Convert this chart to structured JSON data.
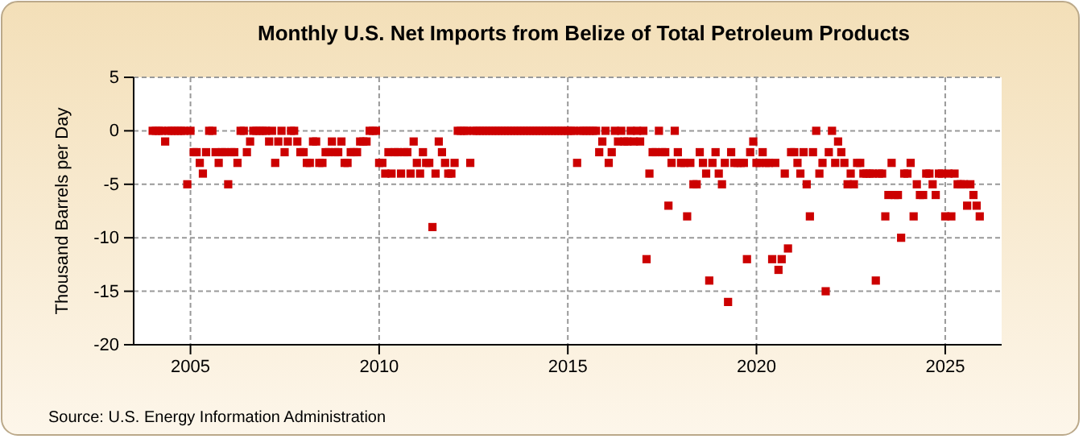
{
  "chart_data": {
    "type": "scatter",
    "title": "Monthly U.S. Net Imports from Belize of Total Petroleum Products",
    "ylabel": "Thousand Barrels per Day",
    "annotations": [
      "Source: U.S. Energy Information Administration"
    ],
    "xlim": [
      "2003-07",
      "2026-07"
    ],
    "xticks": [
      "2005",
      "2010",
      "2015",
      "2020",
      "2025"
    ],
    "ylim": [
      -20,
      5
    ],
    "yticks": [
      -20,
      -15,
      -10,
      -5,
      0,
      5
    ],
    "grid": true,
    "marker": "square",
    "x": [
      "2004-01",
      "2004-02",
      "2004-03",
      "2004-04",
      "2004-05",
      "2004-06",
      "2004-07",
      "2004-08",
      "2004-09",
      "2004-10",
      "2004-11",
      "2004-12",
      "2005-01",
      "2005-02",
      "2005-03",
      "2005-04",
      "2005-05",
      "2005-06",
      "2005-07",
      "2005-08",
      "2005-09",
      "2005-10",
      "2005-11",
      "2005-12",
      "2006-01",
      "2006-02",
      "2006-03",
      "2006-04",
      "2006-05",
      "2006-06",
      "2006-07",
      "2006-08",
      "2006-09",
      "2006-10",
      "2006-11",
      "2006-12",
      "2007-01",
      "2007-02",
      "2007-03",
      "2007-04",
      "2007-05",
      "2007-06",
      "2007-07",
      "2007-08",
      "2007-09",
      "2007-10",
      "2007-11",
      "2007-12",
      "2008-01",
      "2008-02",
      "2008-03",
      "2008-04",
      "2008-05",
      "2008-06",
      "2008-07",
      "2008-08",
      "2008-09",
      "2008-10",
      "2008-11",
      "2008-12",
      "2009-01",
      "2009-02",
      "2009-03",
      "2009-04",
      "2009-05",
      "2009-06",
      "2009-07",
      "2009-08",
      "2009-09",
      "2009-10",
      "2009-11",
      "2009-12",
      "2010-01",
      "2010-02",
      "2010-03",
      "2010-04",
      "2010-05",
      "2010-06",
      "2010-07",
      "2010-08",
      "2010-09",
      "2010-10",
      "2010-11",
      "2010-12",
      "2011-01",
      "2011-02",
      "2011-03",
      "2011-04",
      "2011-05",
      "2011-06",
      "2011-07",
      "2011-08",
      "2011-09",
      "2011-10",
      "2011-11",
      "2011-12",
      "2012-01",
      "2012-02",
      "2012-03",
      "2012-04",
      "2012-05",
      "2012-06",
      "2012-07",
      "2012-08",
      "2012-09",
      "2012-10",
      "2012-11",
      "2012-12",
      "2013-01",
      "2013-02",
      "2013-03",
      "2013-04",
      "2013-05",
      "2013-06",
      "2013-07",
      "2013-08",
      "2013-09",
      "2013-10",
      "2013-11",
      "2013-12",
      "2014-01",
      "2014-02",
      "2014-03",
      "2014-04",
      "2014-05",
      "2014-06",
      "2014-07",
      "2014-08",
      "2014-09",
      "2014-10",
      "2014-11",
      "2014-12",
      "2015-01",
      "2015-02",
      "2015-03",
      "2015-04",
      "2015-05",
      "2015-06",
      "2015-07",
      "2015-08",
      "2015-09",
      "2015-10",
      "2015-11",
      "2015-12",
      "2016-01",
      "2016-02",
      "2016-03",
      "2016-04",
      "2016-05",
      "2016-06",
      "2016-07",
      "2016-08",
      "2016-09",
      "2016-10",
      "2016-11",
      "2016-12",
      "2017-01",
      "2017-02",
      "2017-03",
      "2017-04",
      "2017-05",
      "2017-06",
      "2017-07",
      "2017-08",
      "2017-09",
      "2017-10",
      "2017-11",
      "2017-12",
      "2018-01",
      "2018-02",
      "2018-03",
      "2018-04",
      "2018-05",
      "2018-06",
      "2018-07",
      "2018-08",
      "2018-09",
      "2018-10",
      "2018-11",
      "2018-12",
      "2019-01",
      "2019-02",
      "2019-03",
      "2019-04",
      "2019-05",
      "2019-06",
      "2019-07",
      "2019-08",
      "2019-09",
      "2019-10",
      "2019-11",
      "2019-12",
      "2020-01",
      "2020-02",
      "2020-03",
      "2020-04",
      "2020-05",
      "2020-06",
      "2020-07",
      "2020-08",
      "2020-09",
      "2020-10",
      "2020-11",
      "2020-12",
      "2021-01",
      "2021-02",
      "2021-03",
      "2021-04",
      "2021-05",
      "2021-06",
      "2021-07",
      "2021-08",
      "2021-09",
      "2021-10",
      "2021-11",
      "2021-12",
      "2022-01",
      "2022-02",
      "2022-03",
      "2022-04",
      "2022-05",
      "2022-06",
      "2022-07",
      "2022-08",
      "2022-09",
      "2022-10",
      "2022-11",
      "2022-12",
      "2023-01",
      "2023-02",
      "2023-03",
      "2023-04",
      "2023-05",
      "2023-06",
      "2023-07",
      "2023-08",
      "2023-09",
      "2023-10",
      "2023-11",
      "2023-12",
      "2024-01",
      "2024-02",
      "2024-03",
      "2024-04",
      "2024-05",
      "2024-06",
      "2024-07",
      "2024-08",
      "2024-09",
      "2024-10",
      "2024-11",
      "2024-12",
      "2025-01",
      "2025-02",
      "2025-03",
      "2025-04",
      "2025-05",
      "2025-06",
      "2025-07",
      "2025-08",
      "2025-09",
      "2025-10",
      "2025-11",
      "2025-12"
    ],
    "series": [
      {
        "color": "#cc0000",
        "values": [
          0,
          0,
          0,
          0,
          -1,
          0,
          0,
          0,
          0,
          0,
          0,
          -5,
          0,
          -2,
          -2,
          -3,
          -4,
          -2,
          0,
          0,
          -2,
          -3,
          -2,
          -2,
          -5,
          -2,
          -2,
          -3,
          0,
          0,
          -2,
          -1,
          0,
          0,
          0,
          0,
          0,
          -1,
          0,
          -3,
          -1,
          0,
          -2,
          -1,
          0,
          0,
          -1,
          -2,
          -2,
          -3,
          -3,
          -1,
          -1,
          -3,
          -3,
          -2,
          -2,
          -1,
          -2,
          -2,
          -1,
          -3,
          -3,
          -2,
          -2,
          -2,
          -1,
          -1,
          -1,
          0,
          0,
          0,
          -3,
          -3,
          -4,
          -2,
          -4,
          -2,
          -2,
          -4,
          -2,
          -2,
          -4,
          -1,
          -3,
          -4,
          -2,
          -3,
          -3,
          -9,
          -4,
          -1,
          -2,
          -3,
          -4,
          -4,
          -3,
          0,
          0,
          0,
          0,
          -3,
          0,
          0,
          0,
          0,
          0,
          0,
          0,
          0,
          0,
          0,
          0,
          0,
          0,
          0,
          0,
          0,
          0,
          0,
          0,
          0,
          0,
          0,
          0,
          0,
          0,
          0,
          0,
          0,
          0,
          0,
          0,
          0,
          0,
          -3,
          0,
          0,
          0,
          0,
          0,
          0,
          -2,
          -1,
          0,
          -3,
          -2,
          0,
          -1,
          0,
          -1,
          -1,
          0,
          -1,
          0,
          -1,
          0,
          -12,
          -4,
          -2,
          -2,
          0,
          -2,
          -2,
          -7,
          -3,
          0,
          -2,
          -3,
          -3,
          -8,
          -3,
          -5,
          -5,
          -2,
          -3,
          -4,
          -14,
          -3,
          -2,
          -4,
          -5,
          -3,
          -16,
          -2,
          -3,
          -3,
          -3,
          -3,
          -12,
          -2,
          -1,
          -3,
          -3,
          -2,
          -3,
          -3,
          -12,
          -3,
          -13,
          -12,
          -4,
          -11,
          -2,
          -2,
          -3,
          -4,
          -2,
          -5,
          -8,
          -2,
          0,
          -4,
          -3,
          -15,
          -2,
          0,
          -3,
          -1,
          -2,
          -3,
          -5,
          -4,
          -5,
          -3,
          -3,
          -4,
          -4,
          -4,
          -4,
          -14,
          -4,
          -4,
          -8,
          -6,
          -3,
          -6,
          -6,
          -10,
          -4,
          -4,
          -3,
          -8,
          -5,
          -6,
          -6,
          -4,
          -4,
          -5,
          -6,
          -4,
          -4,
          -8,
          -4,
          -8,
          -4,
          -5,
          -5,
          -5,
          -7,
          -5,
          -6,
          -7,
          -8
        ]
      }
    ]
  }
}
